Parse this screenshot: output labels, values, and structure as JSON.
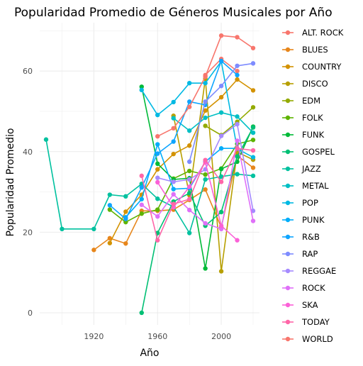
{
  "chart_data": {
    "type": "line",
    "title": "Popularidad Promedio de Géneros Musicales por Año",
    "xlabel": "Año",
    "ylabel": "Popularidad Promedio",
    "xlim": [
      1886,
      2024
    ],
    "ylim": [
      -3,
      72
    ],
    "xticks": [
      1920,
      1960,
      2000
    ],
    "yticks": [
      0,
      20,
      40,
      60
    ],
    "grid": true,
    "legend_position": "right",
    "series": [
      {
        "name": "ALT. ROCK",
        "color": "#F8766D",
        "x": [
          1990,
          2000,
          2010
        ],
        "y": [
          59,
          63,
          60
        ]
      },
      {
        "name": "BLUES",
        "color": "#E7861B",
        "x": [
          1920,
          1930,
          1940,
          1950,
          1960,
          1970,
          1980,
          1990,
          2000,
          2010,
          2020
        ],
        "y": [
          15.6,
          18.5,
          17.2,
          25.3,
          25.3,
          25.6,
          28,
          30.6,
          21.2,
          39,
          36
        ]
      },
      {
        "name": "COUNTRY",
        "color": "#D39200",
        "x": [
          1930,
          1940,
          1950,
          1960,
          1970,
          1980,
          1990,
          2000,
          2010,
          2020
        ],
        "y": [
          17.3,
          25.1,
          29.3,
          35.6,
          39.4,
          41.5,
          50.2,
          53.5,
          57.9,
          55.2
        ]
      },
      {
        "name": "DISCO",
        "color": "#B79F00",
        "x": [
          1970,
          1980,
          1990,
          2000,
          2010,
          2020
        ],
        "y": [
          48.9,
          29.2,
          58.1,
          10.3,
          39.9,
          38
        ]
      },
      {
        "name": "EDM",
        "color": "#93AA00",
        "x": [
          1990,
          2000,
          2010,
          2020
        ],
        "y": [
          46.4,
          44.1,
          47.4,
          51
        ]
      },
      {
        "name": "FOLK",
        "color": "#5EB300",
        "x": [
          1930,
          1940,
          1950,
          1960,
          1970,
          1980,
          1990,
          2000,
          2010,
          2020
        ],
        "y": [
          25.6,
          22.5,
          24.6,
          25.6,
          33.3,
          35.2,
          34.3,
          35.8,
          41.9,
          42.9
        ]
      },
      {
        "name": "FUNK",
        "color": "#00BA38",
        "x": [
          1950,
          1960,
          1970,
          1980,
          1990,
          2000,
          2010,
          2020
        ],
        "y": [
          56.1,
          37,
          33.1,
          33.4,
          11,
          35.7,
          37.5,
          46.2
        ]
      },
      {
        "name": "GOSPEL",
        "color": "#00BF74",
        "x": [
          1950,
          1960,
          1970,
          1980,
          1990,
          2000,
          2010,
          2020
        ],
        "y": [
          0,
          19.8,
          27.6,
          29.7,
          21.6,
          25,
          38.8,
          46
        ]
      },
      {
        "name": "JAZZ",
        "color": "#00C19F",
        "x": [
          1890,
          1900,
          1920,
          1930,
          1940,
          1950,
          1960,
          1970,
          1980,
          1990,
          2000,
          2010,
          2020
        ],
        "y": [
          43,
          20.8,
          20.8,
          29.3,
          28.9,
          32,
          28.3,
          26.3,
          19.8,
          33.1,
          33.8,
          34.4,
          34
        ]
      },
      {
        "name": "METAL",
        "color": "#00BFC4",
        "x": [
          1970,
          1980,
          1990,
          2000,
          2010,
          2020
        ],
        "y": [
          48.3,
          45.2,
          48.4,
          49.7,
          48.7,
          44.7
        ]
      },
      {
        "name": "POP",
        "color": "#00B9E3",
        "x": [
          1950,
          1960,
          1970,
          1980,
          1990,
          2000,
          2010,
          2020
        ],
        "y": [
          55.3,
          49.1,
          52.3,
          57,
          57,
          62.4,
          40.7,
          38.6
        ]
      },
      {
        "name": "PUNK",
        "color": "#00ADFA",
        "x": [
          1940,
          1950,
          1960,
          1970,
          1980,
          1990,
          2000,
          2010
        ],
        "y": [
          23.7,
          28.2,
          41.8,
          30.7,
          30.9,
          37.5,
          40.8,
          40.8
        ]
      },
      {
        "name": "R&B",
        "color": "#0EA5FF",
        "x": [
          1930,
          1940,
          1950,
          1960,
          1970,
          1980,
          1990,
          2000,
          2010
        ],
        "y": [
          26.7,
          23.3,
          31.1,
          39.5,
          42.5,
          52.4,
          51.6,
          62.5,
          59
        ]
      },
      {
        "name": "RAP",
        "color": "#7E8CFF",
        "x": [
          1980,
          1990,
          2000,
          2010,
          2020
        ],
        "y": [
          37.5,
          52.4,
          56.3,
          61.3,
          61.9
        ]
      },
      {
        "name": "REGGAE",
        "color": "#A58AFF",
        "x": [
          1960,
          1970,
          1980,
          1990,
          2000,
          2010,
          2020
        ],
        "y": [
          33.5,
          32.5,
          33.1,
          35.6,
          43.9,
          46.8,
          25.3
        ]
      },
      {
        "name": "ROCK",
        "color": "#DF70F8",
        "x": [
          1950,
          1960,
          1970,
          1980,
          1990,
          2000,
          2010,
          2020
        ],
        "y": [
          26.8,
          23.9,
          29.4,
          25.5,
          22.2,
          20.8,
          42.7,
          22.8
        ]
      },
      {
        "name": "SKA",
        "color": "#FB61D7",
        "x": [
          1960,
          1970,
          1980,
          1990,
          2000,
          2010
        ],
        "y": [
          32.4,
          26.2,
          31.3,
          37.3,
          21.6,
          18
        ]
      },
      {
        "name": "TODAY",
        "color": "#FF66A8",
        "x": [
          1950,
          1960,
          1970,
          1980,
          1990,
          2000,
          2010,
          2020
        ],
        "y": [
          34,
          18,
          27,
          28.2,
          37.9,
          32.5,
          40.8,
          40.3
        ]
      },
      {
        "name": "WORLD",
        "color": "#F8766D",
        "x": [
          1960,
          1970,
          1980,
          1990,
          2000,
          2010,
          2020
        ],
        "y": [
          43.8,
          45.8,
          51.1,
          58.6,
          68.8,
          68.4,
          65.7
        ]
      }
    ]
  }
}
